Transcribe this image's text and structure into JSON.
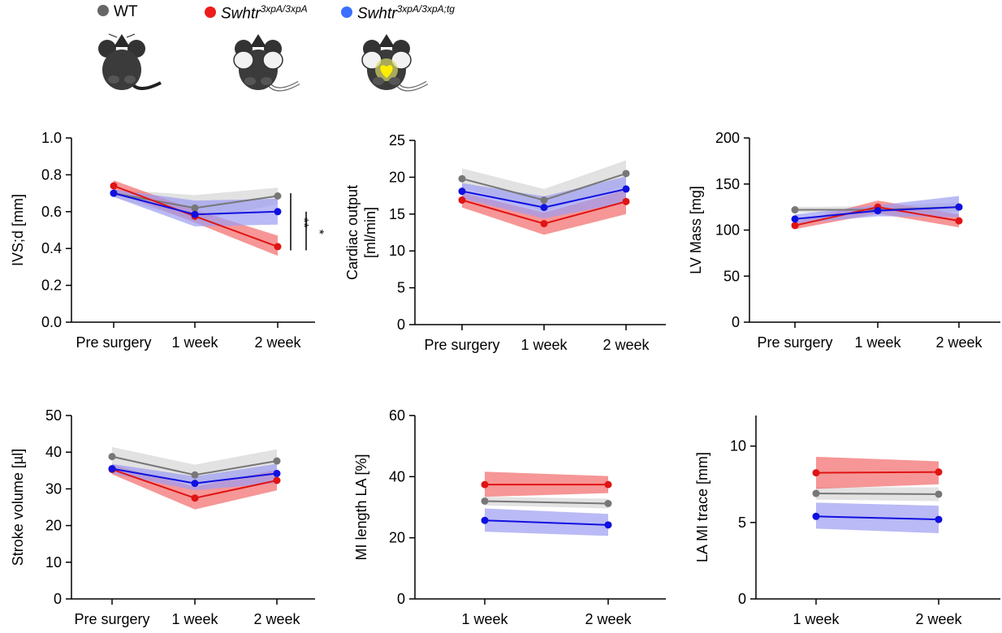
{
  "legend": {
    "wt": {
      "label": "WT",
      "color": "#666666"
    },
    "mut": {
      "base": "Swhtr",
      "sup": "3xpA/3xpA",
      "color": "#ee1c1c"
    },
    "tg": {
      "base": "Swhtr",
      "sup": "3xpA/3xpA;tg",
      "color": "#3a6fff"
    }
  },
  "series_colors": {
    "wt": "#777777",
    "mut": "#e01414",
    "tg": "#1010e0"
  },
  "band_colors": {
    "wt": "#d6d6d6",
    "mut": "#f26a6a",
    "tg": "#9c9cf2"
  },
  "chart_data": [
    {
      "type": "line",
      "ylabel": [
        "IVS;d [mm]"
      ],
      "categories": [
        "Pre surgery",
        "1 week",
        "2 week"
      ],
      "ylim": [
        0,
        1.0
      ],
      "yticks": [
        "0.0",
        "0.2",
        "0.4",
        "0.6",
        "0.8",
        "1.0"
      ],
      "series": [
        {
          "key": "wt",
          "values": [
            0.7,
            0.62,
            0.685
          ],
          "lower": [
            0.68,
            0.55,
            0.64
          ],
          "upper": [
            0.72,
            0.69,
            0.73
          ]
        },
        {
          "key": "mut",
          "values": [
            0.74,
            0.575,
            0.41
          ],
          "lower": [
            0.71,
            0.54,
            0.36
          ],
          "upper": [
            0.77,
            0.61,
            0.47
          ]
        },
        {
          "key": "tg",
          "values": [
            0.7,
            0.585,
            0.6
          ],
          "lower": [
            0.68,
            0.52,
            0.53
          ],
          "upper": [
            0.72,
            0.66,
            0.67
          ]
        }
      ],
      "annotations": [
        "**",
        "*"
      ]
    },
    {
      "type": "line",
      "ylabel": [
        "Cardiac output",
        "[ml/min]"
      ],
      "categories": [
        "Pre surgery",
        "1 week",
        "2 week"
      ],
      "ylim": [
        0,
        25
      ],
      "yticks": [
        "0",
        "5",
        "10",
        "15",
        "20",
        "25"
      ],
      "series": [
        {
          "key": "wt",
          "values": [
            19.8,
            16.9,
            20.5
          ],
          "lower": [
            18.6,
            15.4,
            18.8
          ],
          "upper": [
            21.2,
            18.4,
            22.3
          ]
        },
        {
          "key": "mut",
          "values": [
            16.9,
            13.7,
            16.7
          ],
          "lower": [
            15.9,
            12.2,
            15.0
          ],
          "upper": [
            17.9,
            15.2,
            18.3
          ]
        },
        {
          "key": "tg",
          "values": [
            18.1,
            15.9,
            18.4
          ],
          "lower": [
            17.1,
            14.4,
            16.6
          ],
          "upper": [
            19.2,
            17.4,
            20.1
          ]
        }
      ],
      "annotations": []
    },
    {
      "type": "line",
      "ylabel": [
        "LV Mass [mg]"
      ],
      "categories": [
        "Pre surgery",
        "1 week",
        "2 week"
      ],
      "ylim": [
        0,
        200
      ],
      "yticks": [
        "0",
        "50",
        "100",
        "150",
        "200"
      ],
      "series": [
        {
          "key": "wt",
          "values": [
            122,
            122,
            125
          ],
          "lower": [
            119,
            118,
            120
          ],
          "upper": [
            125,
            126,
            130
          ]
        },
        {
          "key": "mut",
          "values": [
            105,
            125,
            110
          ],
          "lower": [
            101,
            118,
            103
          ],
          "upper": [
            109,
            132,
            117
          ]
        },
        {
          "key": "tg",
          "values": [
            112,
            121,
            125
          ],
          "lower": [
            107,
            115,
            114
          ],
          "upper": [
            117,
            127,
            137
          ]
        }
      ],
      "annotations": []
    },
    {
      "type": "line",
      "ylabel": [
        "Stroke volume [µl]"
      ],
      "categories": [
        "Pre surgery",
        "1 week",
        "2 week"
      ],
      "ylim": [
        0,
        50
      ],
      "yticks": [
        "0",
        "10",
        "20",
        "30",
        "40",
        "50"
      ],
      "series": [
        {
          "key": "wt",
          "values": [
            38.8,
            33.8,
            37.6
          ],
          "lower": [
            36.2,
            31.0,
            34.6
          ],
          "upper": [
            41.4,
            36.6,
            40.8
          ]
        },
        {
          "key": "mut",
          "values": [
            35.3,
            27.5,
            32.3
          ],
          "lower": [
            34.0,
            24.4,
            29.6
          ],
          "upper": [
            36.6,
            30.6,
            35.2
          ]
        },
        {
          "key": "tg",
          "values": [
            35.5,
            31.5,
            34.2
          ],
          "lower": [
            34.2,
            29.6,
            31.6
          ],
          "upper": [
            36.8,
            33.4,
            36.8
          ]
        }
      ],
      "annotations": []
    },
    {
      "type": "line",
      "ylabel": [
        "MI length LA [%]"
      ],
      "categories": [
        "1 week",
        "2 week"
      ],
      "ylim": [
        0,
        60
      ],
      "yticks": [
        "0",
        "20",
        "40",
        "60"
      ],
      "series": [
        {
          "key": "wt",
          "values": [
            32.0,
            31.2
          ],
          "lower": [
            30.6,
            29.6
          ],
          "upper": [
            33.4,
            32.8
          ]
        },
        {
          "key": "mut",
          "values": [
            37.4,
            37.4
          ],
          "lower": [
            33.4,
            34.6
          ],
          "upper": [
            41.6,
            40.2
          ]
        },
        {
          "key": "tg",
          "values": [
            25.7,
            24.2
          ],
          "lower": [
            22.0,
            20.6
          ],
          "upper": [
            29.6,
            27.8
          ]
        }
      ],
      "annotations": []
    },
    {
      "type": "line",
      "ylabel": [
        "LA MI trace [mm]"
      ],
      "categories": [
        "1 week",
        "2 week"
      ],
      "ylim": [
        0,
        12
      ],
      "yticks": [
        "0",
        "5",
        "10"
      ],
      "series": [
        {
          "key": "wt",
          "values": [
            6.9,
            6.85
          ],
          "lower": [
            6.5,
            6.4
          ],
          "upper": [
            7.3,
            7.3
          ]
        },
        {
          "key": "mut",
          "values": [
            8.25,
            8.3
          ],
          "lower": [
            7.2,
            7.5
          ],
          "upper": [
            9.3,
            9.0
          ]
        },
        {
          "key": "tg",
          "values": [
            5.4,
            5.2
          ],
          "lower": [
            4.6,
            4.3
          ],
          "upper": [
            6.3,
            6.1
          ]
        }
      ],
      "annotations": []
    }
  ]
}
